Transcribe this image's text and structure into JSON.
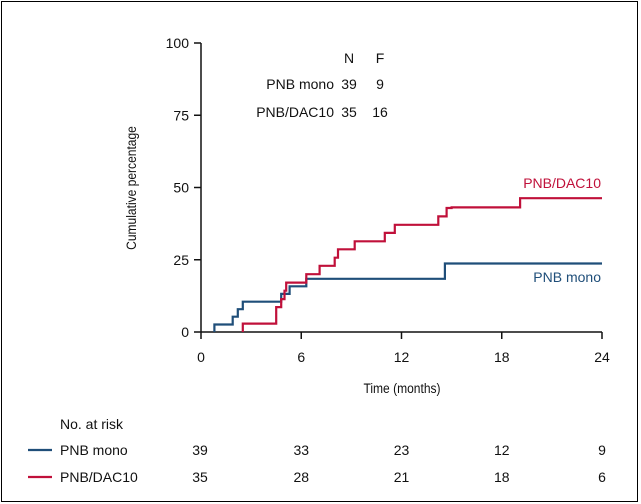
{
  "chart_data": {
    "type": "line",
    "xlabel": "Time (months)",
    "ylabel": "Cumulative percentage",
    "xlim": [
      0,
      24
    ],
    "ylim": [
      0,
      100
    ],
    "x_ticks": [
      "0",
      "6",
      "12",
      "18",
      "24"
    ],
    "y_ticks": [
      "0",
      "25",
      "50",
      "75",
      "100"
    ],
    "grid": false,
    "table": {
      "headers": [
        "N",
        "F"
      ],
      "rows": [
        {
          "name": "PNB mono",
          "n": "39",
          "f": "9"
        },
        {
          "name": "PNB/DAC10",
          "n": "35",
          "f": "16"
        }
      ]
    },
    "series": [
      {
        "name": "PNB mono",
        "color": "#1f4e79",
        "steps": [
          [
            0.8,
            0
          ],
          [
            0.8,
            2.6
          ],
          [
            1.9,
            2.6
          ],
          [
            1.9,
            5.3
          ],
          [
            2.2,
            5.3
          ],
          [
            2.2,
            7.9
          ],
          [
            2.5,
            7.9
          ],
          [
            2.5,
            10.5
          ],
          [
            4.8,
            10.5
          ],
          [
            4.8,
            13.2
          ],
          [
            5.3,
            13.2
          ],
          [
            5.3,
            15.8
          ],
          [
            6.3,
            15.8
          ],
          [
            6.3,
            18.4
          ],
          [
            14.6,
            18.4
          ],
          [
            14.6,
            23.7
          ],
          [
            24,
            23.7
          ]
        ]
      },
      {
        "name": "PNB/DAC10",
        "color": "#c0103a",
        "steps": [
          [
            2.5,
            0
          ],
          [
            2.5,
            2.9
          ],
          [
            4.5,
            2.9
          ],
          [
            4.5,
            8.6
          ],
          [
            4.8,
            8.6
          ],
          [
            4.8,
            11.4
          ],
          [
            5.0,
            11.4
          ],
          [
            5.0,
            14.3
          ],
          [
            5.1,
            14.3
          ],
          [
            5.1,
            17.1
          ],
          [
            6.3,
            17.1
          ],
          [
            6.3,
            20.0
          ],
          [
            7.1,
            20.0
          ],
          [
            7.1,
            22.9
          ],
          [
            8.0,
            22.9
          ],
          [
            8.0,
            25.7
          ],
          [
            8.2,
            25.7
          ],
          [
            8.2,
            28.6
          ],
          [
            9.2,
            28.6
          ],
          [
            9.2,
            31.4
          ],
          [
            11.0,
            31.4
          ],
          [
            11.0,
            34.3
          ],
          [
            11.6,
            34.3
          ],
          [
            11.6,
            37.1
          ],
          [
            14.2,
            37.1
          ],
          [
            14.2,
            40.0
          ],
          [
            14.7,
            40.0
          ],
          [
            14.7,
            42.9
          ],
          [
            15.0,
            42.9
          ],
          [
            15.0,
            43.1
          ],
          [
            19.1,
            43.1
          ],
          [
            19.1,
            46.3
          ],
          [
            24,
            46.3
          ]
        ]
      }
    ],
    "annotations": [
      {
        "text": "PNB/DAC10",
        "series": "PNB/DAC10"
      },
      {
        "text": "PNB mono",
        "series": "PNB mono"
      }
    ],
    "risk_table": {
      "title": "No. at risk",
      "rows": [
        {
          "name": "PNB mono",
          "values": [
            "39",
            "33",
            "23",
            "12",
            "9"
          ]
        },
        {
          "name": "PNB/DAC10",
          "values": [
            "35",
            "28",
            "21",
            "18",
            "6"
          ]
        }
      ]
    }
  }
}
